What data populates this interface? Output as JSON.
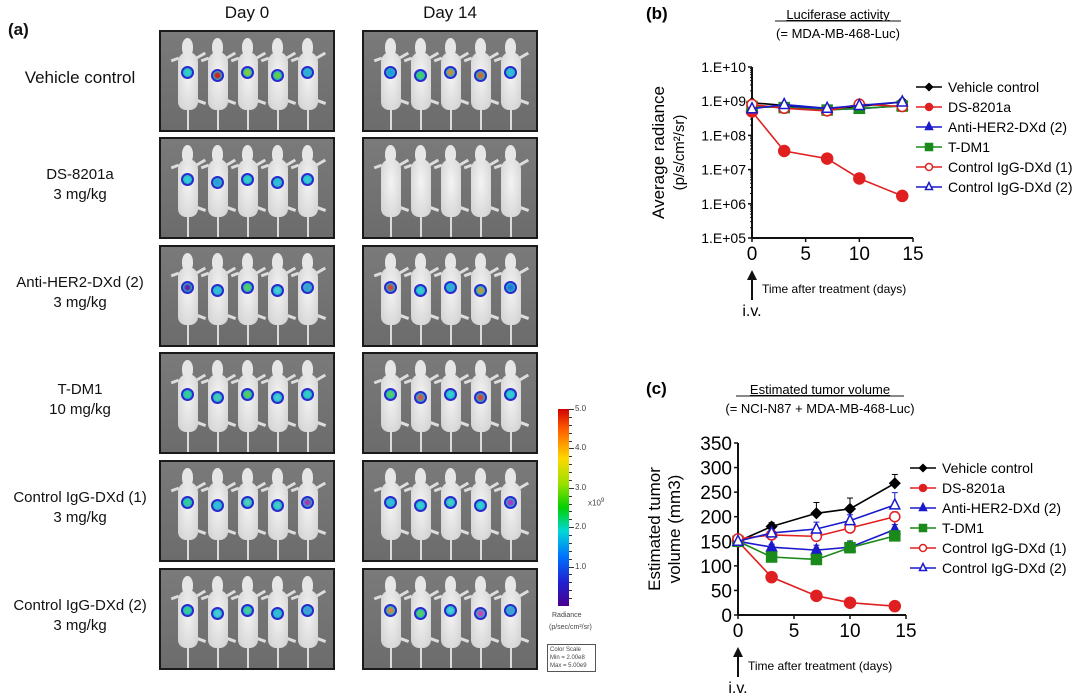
{
  "panel_a": {
    "label": "(a)",
    "columns": [
      "Day 0",
      "Day 14"
    ],
    "rows": [
      {
        "name": "Vehicle control",
        "dose": "",
        "day0_signal": true,
        "day14_signal": true
      },
      {
        "name": "DS-8201a",
        "dose": "3 mg/kg",
        "day0_signal": true,
        "day14_signal": false
      },
      {
        "name": "Anti-HER2-DXd (2)",
        "dose": "3 mg/kg",
        "day0_signal": true,
        "day14_signal": true
      },
      {
        "name": "T-DM1",
        "dose": "10 mg/kg",
        "day0_signal": true,
        "day14_signal": true
      },
      {
        "name": "Control IgG-DXd (1)",
        "dose": "3 mg/kg",
        "day0_signal": true,
        "day14_signal": true
      },
      {
        "name": "Control IgG-DXd (2)",
        "dose": "3 mg/kg",
        "day0_signal": true,
        "day14_signal": true
      }
    ],
    "mice_per_panel": 5,
    "colorbar": {
      "ticks": [
        "5.0",
        "4.0",
        "3.0",
        "2.0",
        "1.0"
      ],
      "multiplier": "x10",
      "multiplier_exp": "9",
      "unit_label": "Radiance",
      "unit": "(p/sec/cm²/sr)",
      "scale_title": "Color Scale",
      "scale_min": "Min = 2.00e8",
      "scale_max": "Max = 5.00e9"
    }
  },
  "chart_data": [
    {
      "type": "line",
      "panel_label": "(b)",
      "title": "Luciferase activity",
      "subtitle": "(= MDA-MB-468-Luc)",
      "xlabel": "Time after treatment (days)",
      "ylabel": "Average radiance",
      "ylabel2": "(p/s/cm²/sr)",
      "yscale": "log",
      "ylim": [
        100000,
        10000000000
      ],
      "yticks": [
        "1.E+05",
        "1.E+06",
        "1.E+07",
        "1.E+08",
        "1.E+09",
        "1.E+10"
      ],
      "xlim": [
        0,
        15
      ],
      "xticks": [
        "0",
        "5",
        "10",
        "15"
      ],
      "annotation": "i.v.",
      "legend_position": "right",
      "x": [
        0,
        3,
        7,
        10,
        14
      ],
      "series": [
        {
          "name": "Vehicle control",
          "color": "#000000",
          "marker": "diamond",
          "filled": true,
          "values": [
            900000000,
            750000000,
            600000000,
            700000000,
            950000000
          ]
        },
        {
          "name": "DS-8201a",
          "color": "#e02020",
          "marker": "circle",
          "filled": true,
          "values": [
            500000000,
            35000000,
            21000000,
            5500000,
            1700000
          ]
        },
        {
          "name": "Anti-HER2-DXd (2)",
          "color": "#1a1acc",
          "marker": "triangle",
          "filled": true,
          "values": [
            650000000,
            700000000,
            580000000,
            600000000,
            750000000
          ]
        },
        {
          "name": "T-DM1",
          "color": "#1a8a1a",
          "marker": "square",
          "filled": true,
          "values": [
            700000000,
            650000000,
            550000000,
            620000000,
            720000000
          ]
        },
        {
          "name": "Control IgG-DXd (1)",
          "color": "#e02020",
          "marker": "circle",
          "filled": false,
          "values": [
            800000000,
            620000000,
            520000000,
            820000000,
            700000000
          ]
        },
        {
          "name": "Control IgG-DXd (2)",
          "color": "#1a1acc",
          "marker": "triangle",
          "filled": false,
          "values": [
            600000000,
            800000000,
            620000000,
            750000000,
            950000000
          ]
        }
      ]
    },
    {
      "type": "line",
      "panel_label": "(c)",
      "title": "Estimated tumor volume",
      "subtitle": "(= NCI-N87 + MDA-MB-468-Luc)",
      "xlabel": "Time after treatment (days)",
      "ylabel": "Estimated tumor",
      "ylabel2": "volume (mm3)",
      "yscale": "linear",
      "ylim": [
        0,
        350
      ],
      "yticks": [
        "0",
        "50",
        "100",
        "150",
        "200",
        "250",
        "300",
        "350"
      ],
      "xlim": [
        0,
        15
      ],
      "xticks": [
        "0",
        "5",
        "10",
        "15"
      ],
      "annotation": "i.v.",
      "legend_position": "right",
      "x": [
        0,
        3,
        7,
        10,
        14
      ],
      "series": [
        {
          "name": "Vehicle control",
          "color": "#000000",
          "marker": "diamond",
          "filled": true,
          "values": [
            150,
            180,
            207,
            216,
            268
          ],
          "errors": [
            5,
            8,
            22,
            22,
            18
          ]
        },
        {
          "name": "DS-8201a",
          "color": "#e02020",
          "marker": "circle",
          "filled": true,
          "values": [
            150,
            77,
            39,
            25,
            18
          ],
          "errors": [
            3,
            4,
            3,
            3,
            2
          ]
        },
        {
          "name": "Anti-HER2-DXd (2)",
          "color": "#1a1acc",
          "marker": "triangle",
          "filled": true,
          "values": [
            150,
            138,
            132,
            138,
            174
          ],
          "errors": [
            3,
            6,
            10,
            12,
            10
          ]
        },
        {
          "name": "T-DM1",
          "color": "#1a8a1a",
          "marker": "square",
          "filled": true,
          "values": [
            150,
            118,
            113,
            137,
            161
          ],
          "errors": [
            3,
            5,
            6,
            14,
            8
          ]
        },
        {
          "name": "Control IgG-DXd (1)",
          "color": "#e02020",
          "marker": "circle",
          "filled": false,
          "values": [
            155,
            163,
            160,
            177,
            200
          ],
          "errors": [
            3,
            8,
            8,
            18,
            10
          ]
        },
        {
          "name": "Control IgG-DXd (2)",
          "color": "#1a1acc",
          "marker": "triangle",
          "filled": false,
          "values": [
            150,
            167,
            175,
            192,
            224
          ],
          "errors": [
            3,
            6,
            14,
            12,
            25
          ]
        }
      ]
    }
  ]
}
